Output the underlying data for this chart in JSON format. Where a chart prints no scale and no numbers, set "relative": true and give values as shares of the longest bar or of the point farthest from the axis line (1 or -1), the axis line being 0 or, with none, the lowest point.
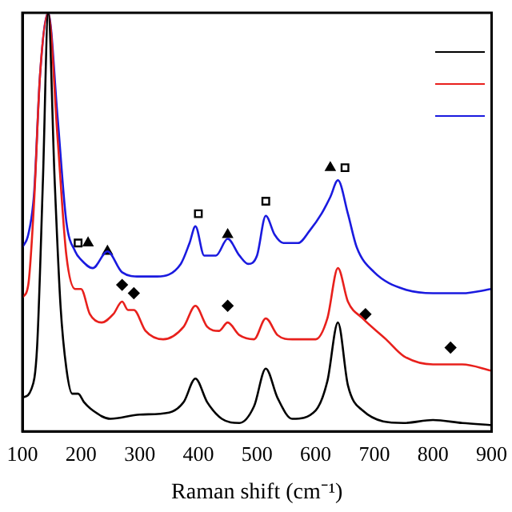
{
  "chart_data": {
    "type": "line",
    "xlabel": "Raman shift (cm⁻¹)",
    "relative": true,
    "xlim": [
      100,
      900
    ],
    "xticks": [
      100,
      200,
      300,
      400,
      500,
      600,
      700,
      800,
      900
    ],
    "grid": false,
    "marker": "none",
    "series": [
      {
        "color": "#000000",
        "x": [
          100,
          115,
          125,
          135,
          144,
          155,
          165,
          175,
          185,
          195,
          205,
          220,
          250,
          300,
          350,
          375,
          395,
          415,
          440,
          470,
          495,
          515,
          535,
          560,
          600,
          620,
          638,
          655,
          680,
          750,
          800,
          850,
          900
        ],
        "values": [
          0.08,
          0.1,
          0.2,
          0.6,
          1,
          0.6,
          0.3,
          0.15,
          0.09,
          0.09,
          0.07,
          0.05,
          0.03,
          0.04,
          0.045,
          0.07,
          0.126,
          0.07,
          0.03,
          0.02,
          0.06,
          0.15,
          0.08,
          0.03,
          0.05,
          0.12,
          0.26,
          0.11,
          0.05,
          0.02,
          0.027,
          0.02,
          0.015
        ]
      },
      {
        "color": "#e8201c",
        "x": [
          100,
          110,
          120,
          130,
          144,
          160,
          175,
          190,
          200,
          215,
          235,
          255,
          270,
          280,
          290,
          310,
          340,
          375,
          395,
          415,
          435,
          450,
          470,
          495,
          515,
          535,
          560,
          600,
          620,
          638,
          655,
          680,
          720,
          750,
          800,
          850,
          900
        ],
        "values": [
          0.32,
          0.35,
          0.55,
          0.85,
          1,
          0.7,
          0.42,
          0.34,
          0.34,
          0.28,
          0.26,
          0.28,
          0.31,
          0.29,
          0.29,
          0.24,
          0.22,
          0.25,
          0.3,
          0.25,
          0.24,
          0.26,
          0.23,
          0.22,
          0.27,
          0.23,
          0.22,
          0.22,
          0.27,
          0.39,
          0.31,
          0.27,
          0.22,
          0.18,
          0.16,
          0.16,
          0.145
        ]
      },
      {
        "color": "#1a1adf",
        "x": [
          100,
          110,
          120,
          130,
          144,
          160,
          175,
          190,
          200,
          220,
          245,
          270,
          300,
          330,
          370,
          385,
          395,
          410,
          430,
          450,
          470,
          485,
          500,
          515,
          530,
          545,
          570,
          590,
          610,
          625,
          638,
          655,
          670,
          700,
          750,
          800,
          850,
          900
        ],
        "values": [
          0.44,
          0.47,
          0.57,
          0.85,
          1,
          0.75,
          0.5,
          0.43,
          0.41,
          0.39,
          0.43,
          0.38,
          0.37,
          0.37,
          0.4,
          0.45,
          0.49,
          0.42,
          0.42,
          0.46,
          0.42,
          0.4,
          0.42,
          0.515,
          0.47,
          0.45,
          0.45,
          0.48,
          0.52,
          0.56,
          0.6,
          0.52,
          0.44,
          0.38,
          0.34,
          0.33,
          0.33,
          0.34
        ]
      },
      {
        "type": "scatter",
        "marker": "square",
        "color": "#000000",
        "x": [
          195,
          400,
          515,
          650
        ],
        "values": [
          0.45,
          0.52,
          0.55,
          0.63
        ]
      },
      {
        "type": "scatter",
        "marker": "triangle",
        "color": "#000000",
        "x": [
          212,
          245,
          450,
          625
        ],
        "values": [
          0.45,
          0.43,
          0.47,
          0.63
        ]
      },
      {
        "type": "scatter",
        "marker": "diamond",
        "color": "#000000",
        "x": [
          270,
          290,
          450,
          685,
          830
        ],
        "values": [
          0.35,
          0.33,
          0.3,
          0.28,
          0.2
        ]
      }
    ]
  }
}
